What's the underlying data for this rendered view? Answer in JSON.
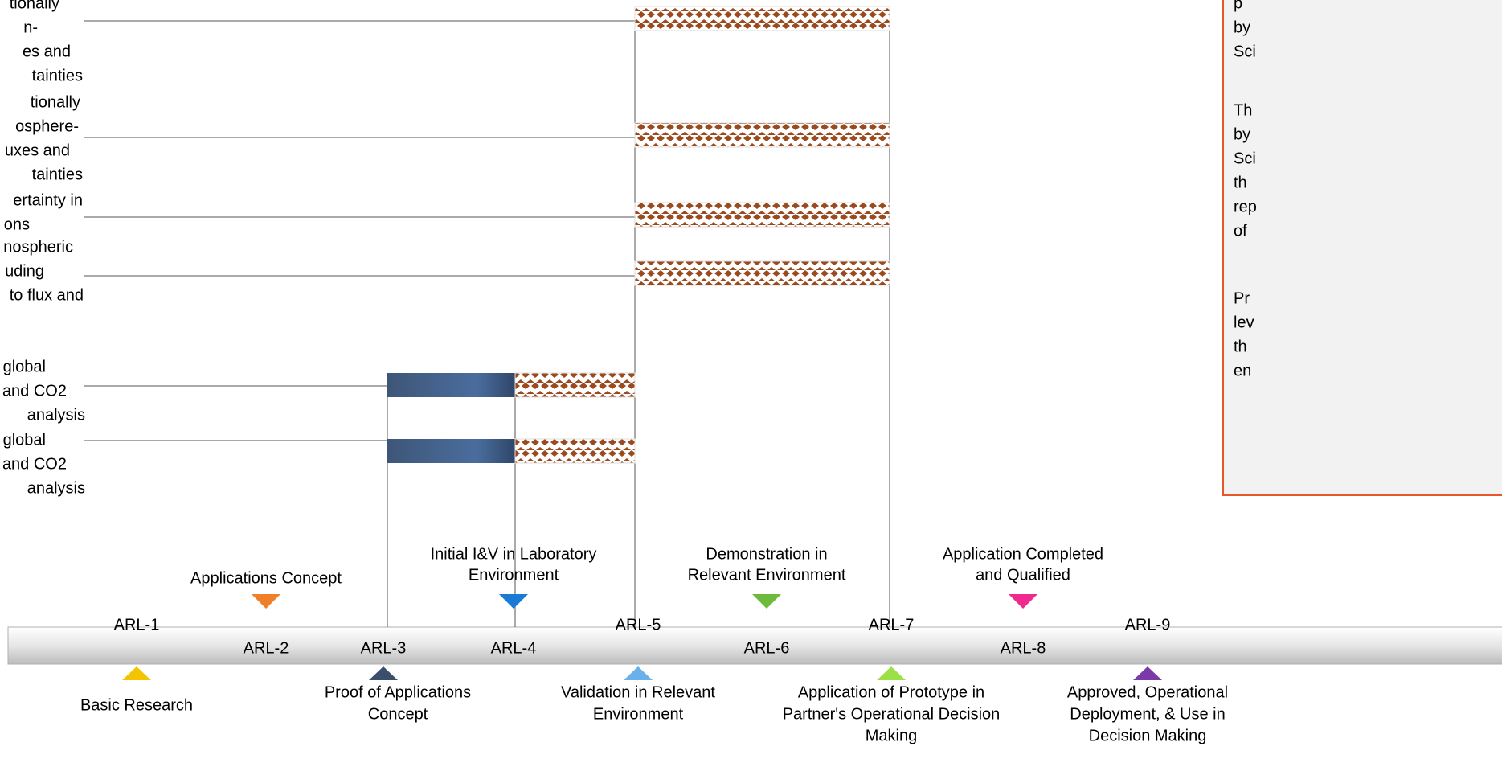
{
  "rows": [
    {
      "lines": [
        "tionally",
        "n-",
        "es and",
        "tainties"
      ]
    },
    {
      "lines": [
        "tionally",
        "osphere-",
        "uxes and",
        "tainties"
      ]
    },
    {
      "lines": [
        "ertainty in",
        "ons"
      ]
    },
    {
      "lines": [
        "nospheric",
        "uding",
        "to flux and"
      ]
    },
    {
      "lines": [
        "global",
        "and CO2",
        "analysis"
      ]
    },
    {
      "lines": [
        "global",
        "and CO2",
        "analysis"
      ]
    }
  ],
  "info_box": {
    "paragraphs": [
      [
        "p",
        "by",
        "Sci"
      ],
      [
        "Th",
        "by",
        "Sci",
        "th",
        "rep",
        "of"
      ],
      [
        "Pr",
        "lev",
        "th",
        "en"
      ]
    ]
  },
  "milestones": [
    {
      "level": "ARL-1",
      "label": [
        "Basic Research"
      ],
      "color": "#f2c500"
    },
    {
      "level": "ARL-2",
      "label": [
        "Applications Concept"
      ],
      "color": "#f07f2a"
    },
    {
      "level": "ARL-3",
      "label": [
        "Proof of Applications",
        "Concept"
      ],
      "color": "#3b4e6b"
    },
    {
      "level": "ARL-4",
      "label": [
        "Initial I&V in Laboratory",
        "Environment"
      ],
      "color": "#1a7bd6"
    },
    {
      "level": "ARL-5",
      "label": [
        "Validation in Relevant",
        "Environment"
      ],
      "color": "#6ab0ea"
    },
    {
      "level": "ARL-6",
      "label": [
        "Demonstration in",
        "Relevant Environment"
      ],
      "color": "#6dbb3c"
    },
    {
      "level": "ARL-7",
      "label": [
        "Application of Prototype in",
        "Partner's Operational Decision",
        "Making"
      ],
      "color": "#9be046"
    },
    {
      "level": "ARL-8",
      "label": [
        "Application Completed",
        "and Qualified"
      ],
      "color": "#f0298f"
    },
    {
      "level": "ARL-9",
      "label": [
        "Approved, Operational",
        "Deployment, & Use in",
        "Decision Making"
      ],
      "color": "#7a3aa8"
    }
  ]
}
